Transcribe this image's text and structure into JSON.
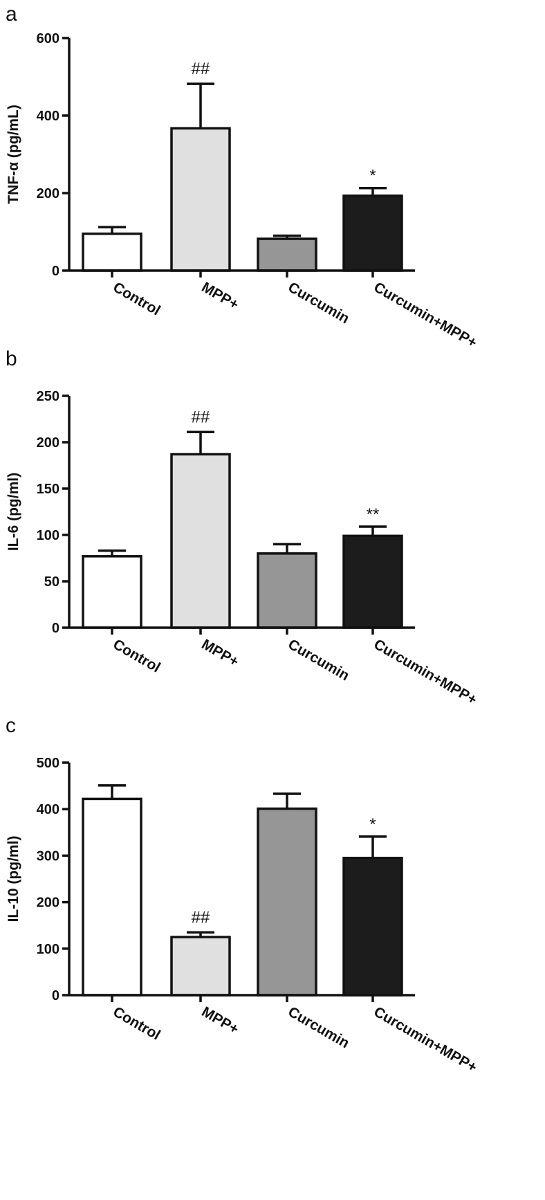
{
  "chart_data": [
    {
      "panel": "a",
      "type": "bar",
      "categories": [
        "Control",
        "MPP+",
        "Curcumin",
        "Curcumin+MPP+"
      ],
      "values": [
        95,
        367,
        82,
        193
      ],
      "errors": [
        17,
        115,
        8,
        20
      ],
      "annotations": [
        "",
        "##",
        "",
        "*"
      ],
      "ylabel": "TNF-α (pg/mL)",
      "ylim": [
        0,
        600
      ],
      "yticks": [
        0,
        200,
        400,
        600
      ],
      "colors": [
        "#ffffff",
        "#e0e0e0",
        "#969696",
        "#1c1c1c"
      ],
      "grid": false,
      "legend": "none"
    },
    {
      "panel": "b",
      "type": "bar",
      "categories": [
        "Control",
        "MPP+",
        "Curcumin",
        "Curcumin+MPP+"
      ],
      "values": [
        77,
        187,
        80,
        99
      ],
      "errors": [
        6,
        24,
        10,
        10
      ],
      "annotations": [
        "",
        "##",
        "",
        "**"
      ],
      "ylabel": "IL-6 (pg/ml)",
      "ylim": [
        0,
        250
      ],
      "yticks": [
        0,
        50,
        100,
        150,
        200,
        250
      ],
      "colors": [
        "#ffffff",
        "#e0e0e0",
        "#969696",
        "#1c1c1c"
      ],
      "grid": false,
      "legend": "none"
    },
    {
      "panel": "c",
      "type": "bar",
      "categories": [
        "Control",
        "MPP+",
        "Curcumin",
        "Curcumin+MPP+"
      ],
      "values": [
        422,
        125,
        401,
        295
      ],
      "errors": [
        29,
        10,
        32,
        46
      ],
      "annotations": [
        "",
        "##",
        "",
        "*"
      ],
      "ylabel": "IL-10 (pg/ml)",
      "ylim": [
        0,
        500
      ],
      "yticks": [
        0,
        100,
        200,
        300,
        400,
        500
      ],
      "colors": [
        "#ffffff",
        "#e0e0e0",
        "#969696",
        "#1c1c1c"
      ],
      "grid": false,
      "legend": "none"
    }
  ]
}
